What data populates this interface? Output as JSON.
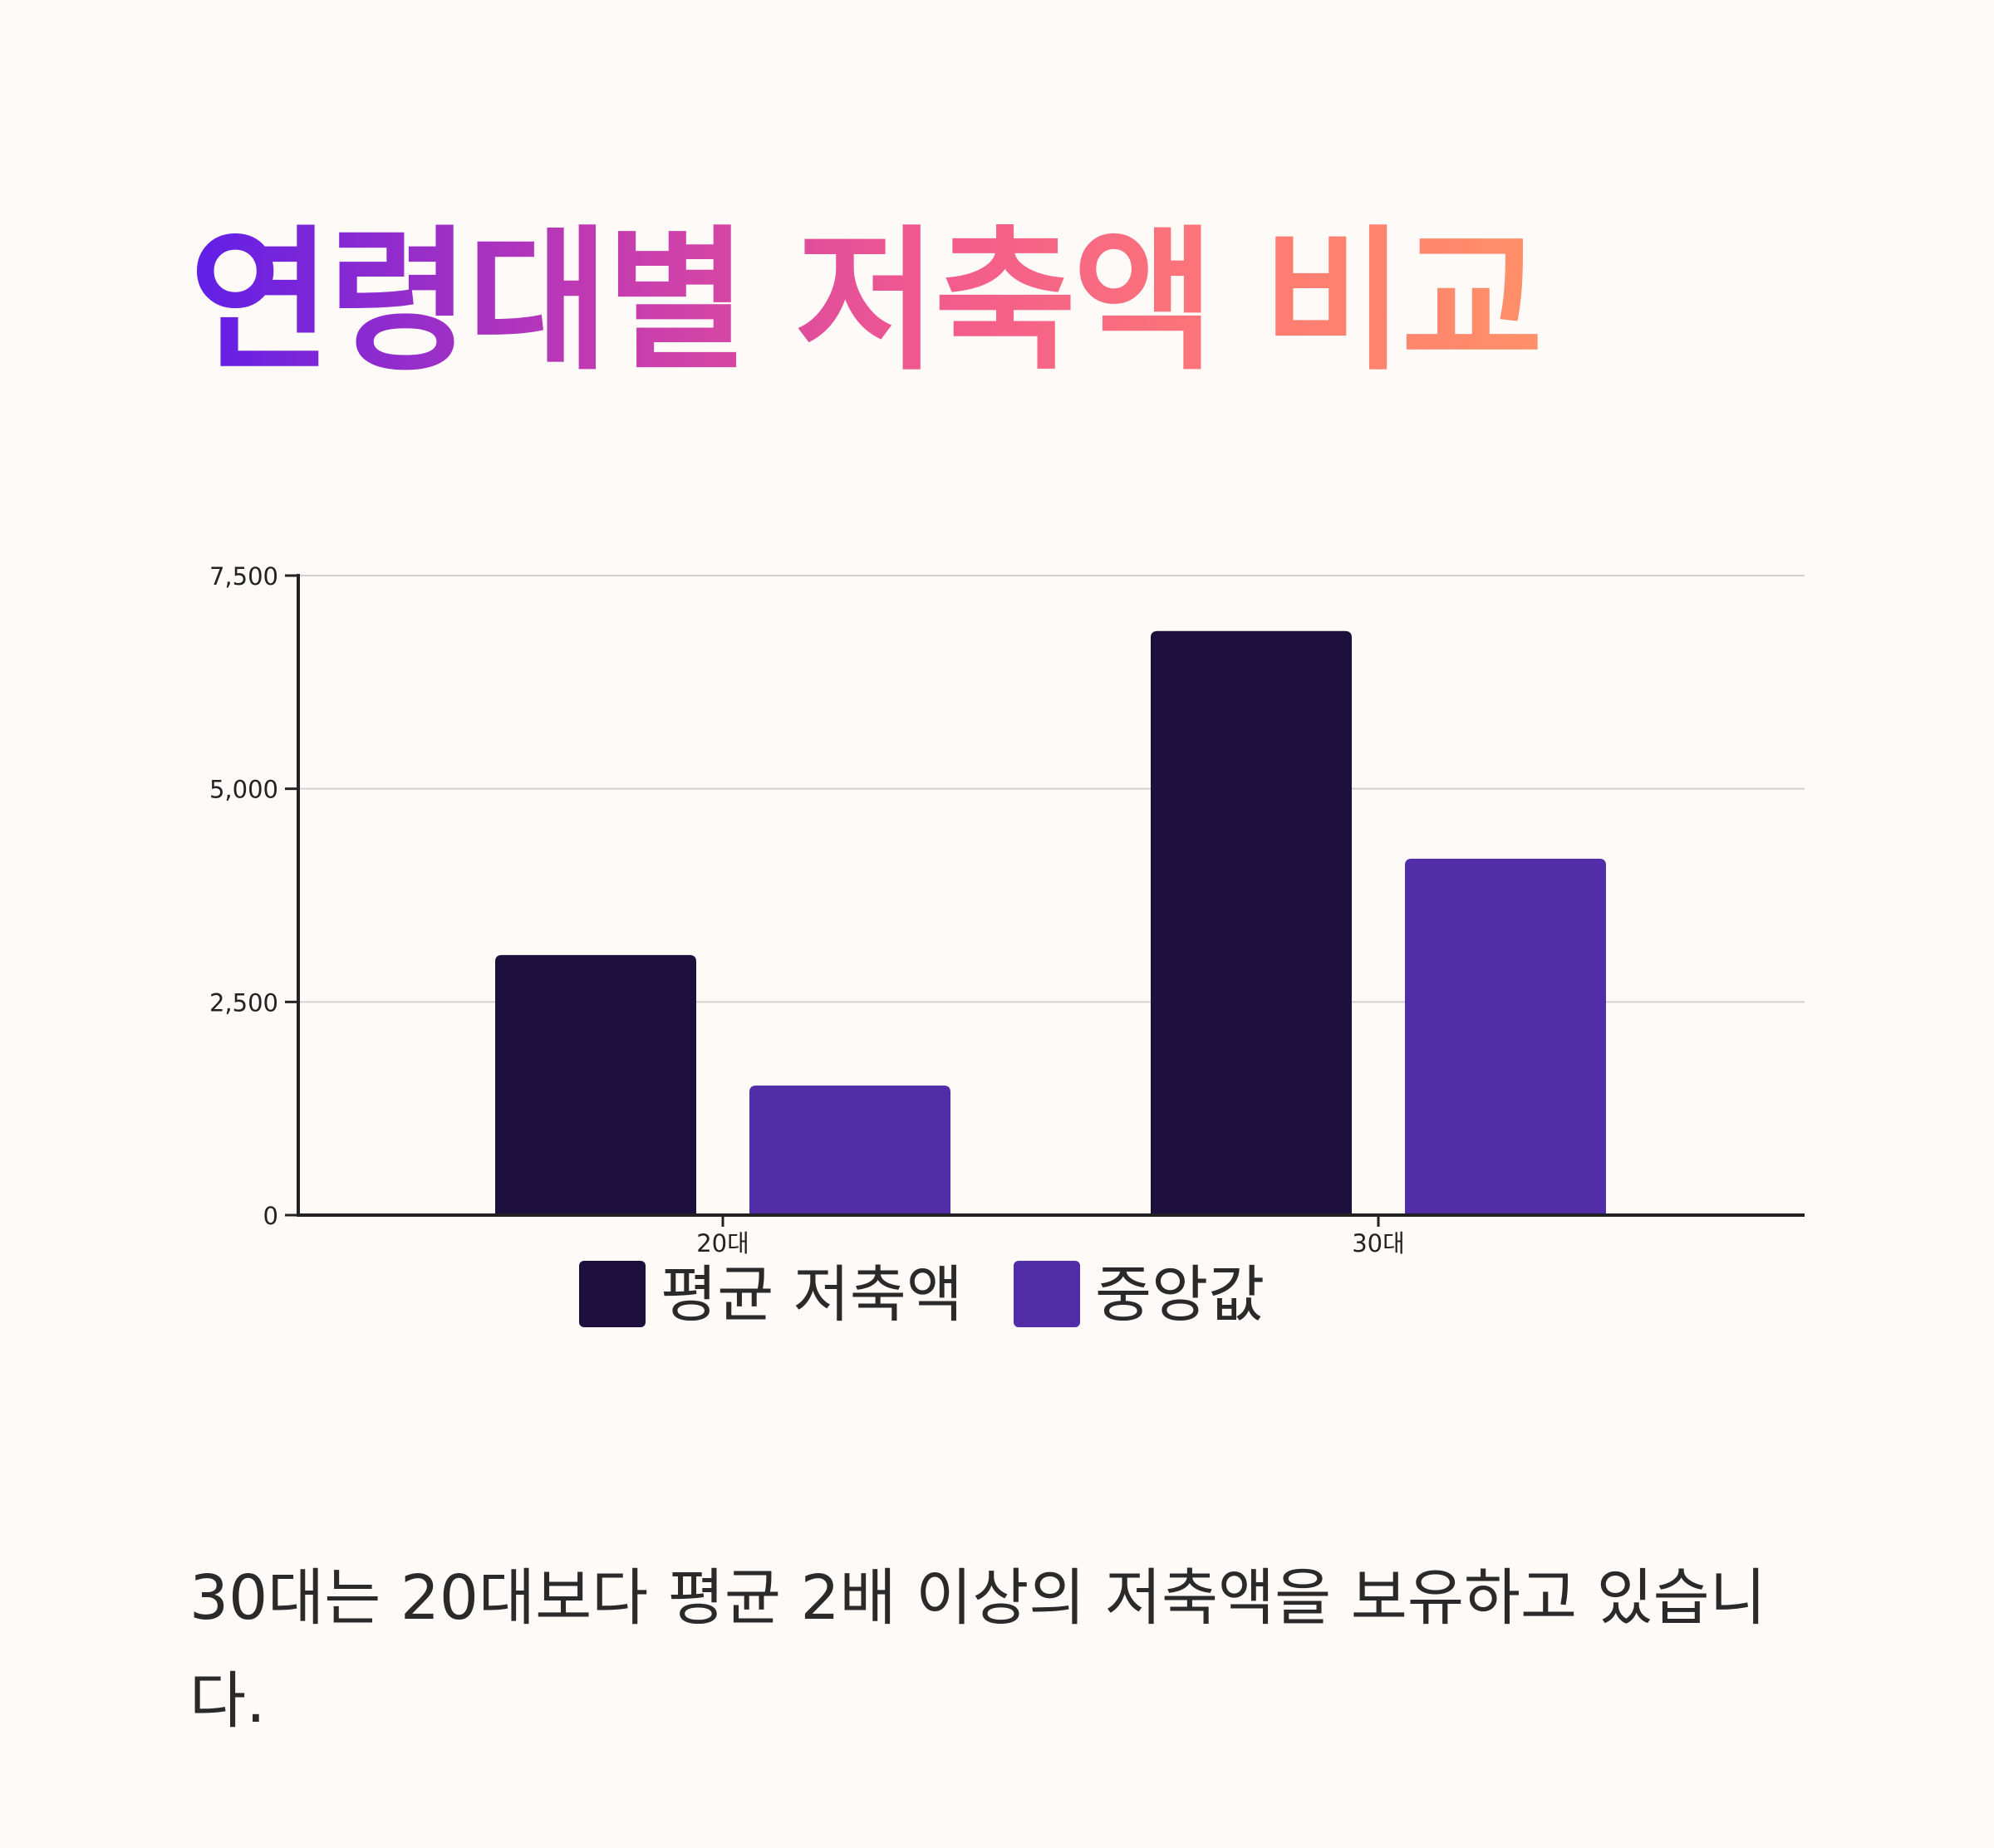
{
  "title": "연령대별 저축액 비교",
  "caption": "30대는 20대보다 평균 2배 이상의 저축액을 보유하고 있습니다.",
  "chart_data": {
    "type": "bar",
    "categories": [
      "20대",
      "30대"
    ],
    "series": [
      {
        "name": "평균 저축액",
        "values": [
          3050,
          6850
        ],
        "color": "#1e103d"
      },
      {
        "name": "중앙값",
        "values": [
          1520,
          4180
        ],
        "color": "#512da8"
      }
    ],
    "ylim": [
      0,
      7500
    ],
    "yticks": [
      0,
      2500,
      5000,
      7500
    ],
    "ytick_labels": [
      "0",
      "2,500",
      "5,000",
      "7,500"
    ],
    "grid": true,
    "legend_position": "bottom-center"
  }
}
